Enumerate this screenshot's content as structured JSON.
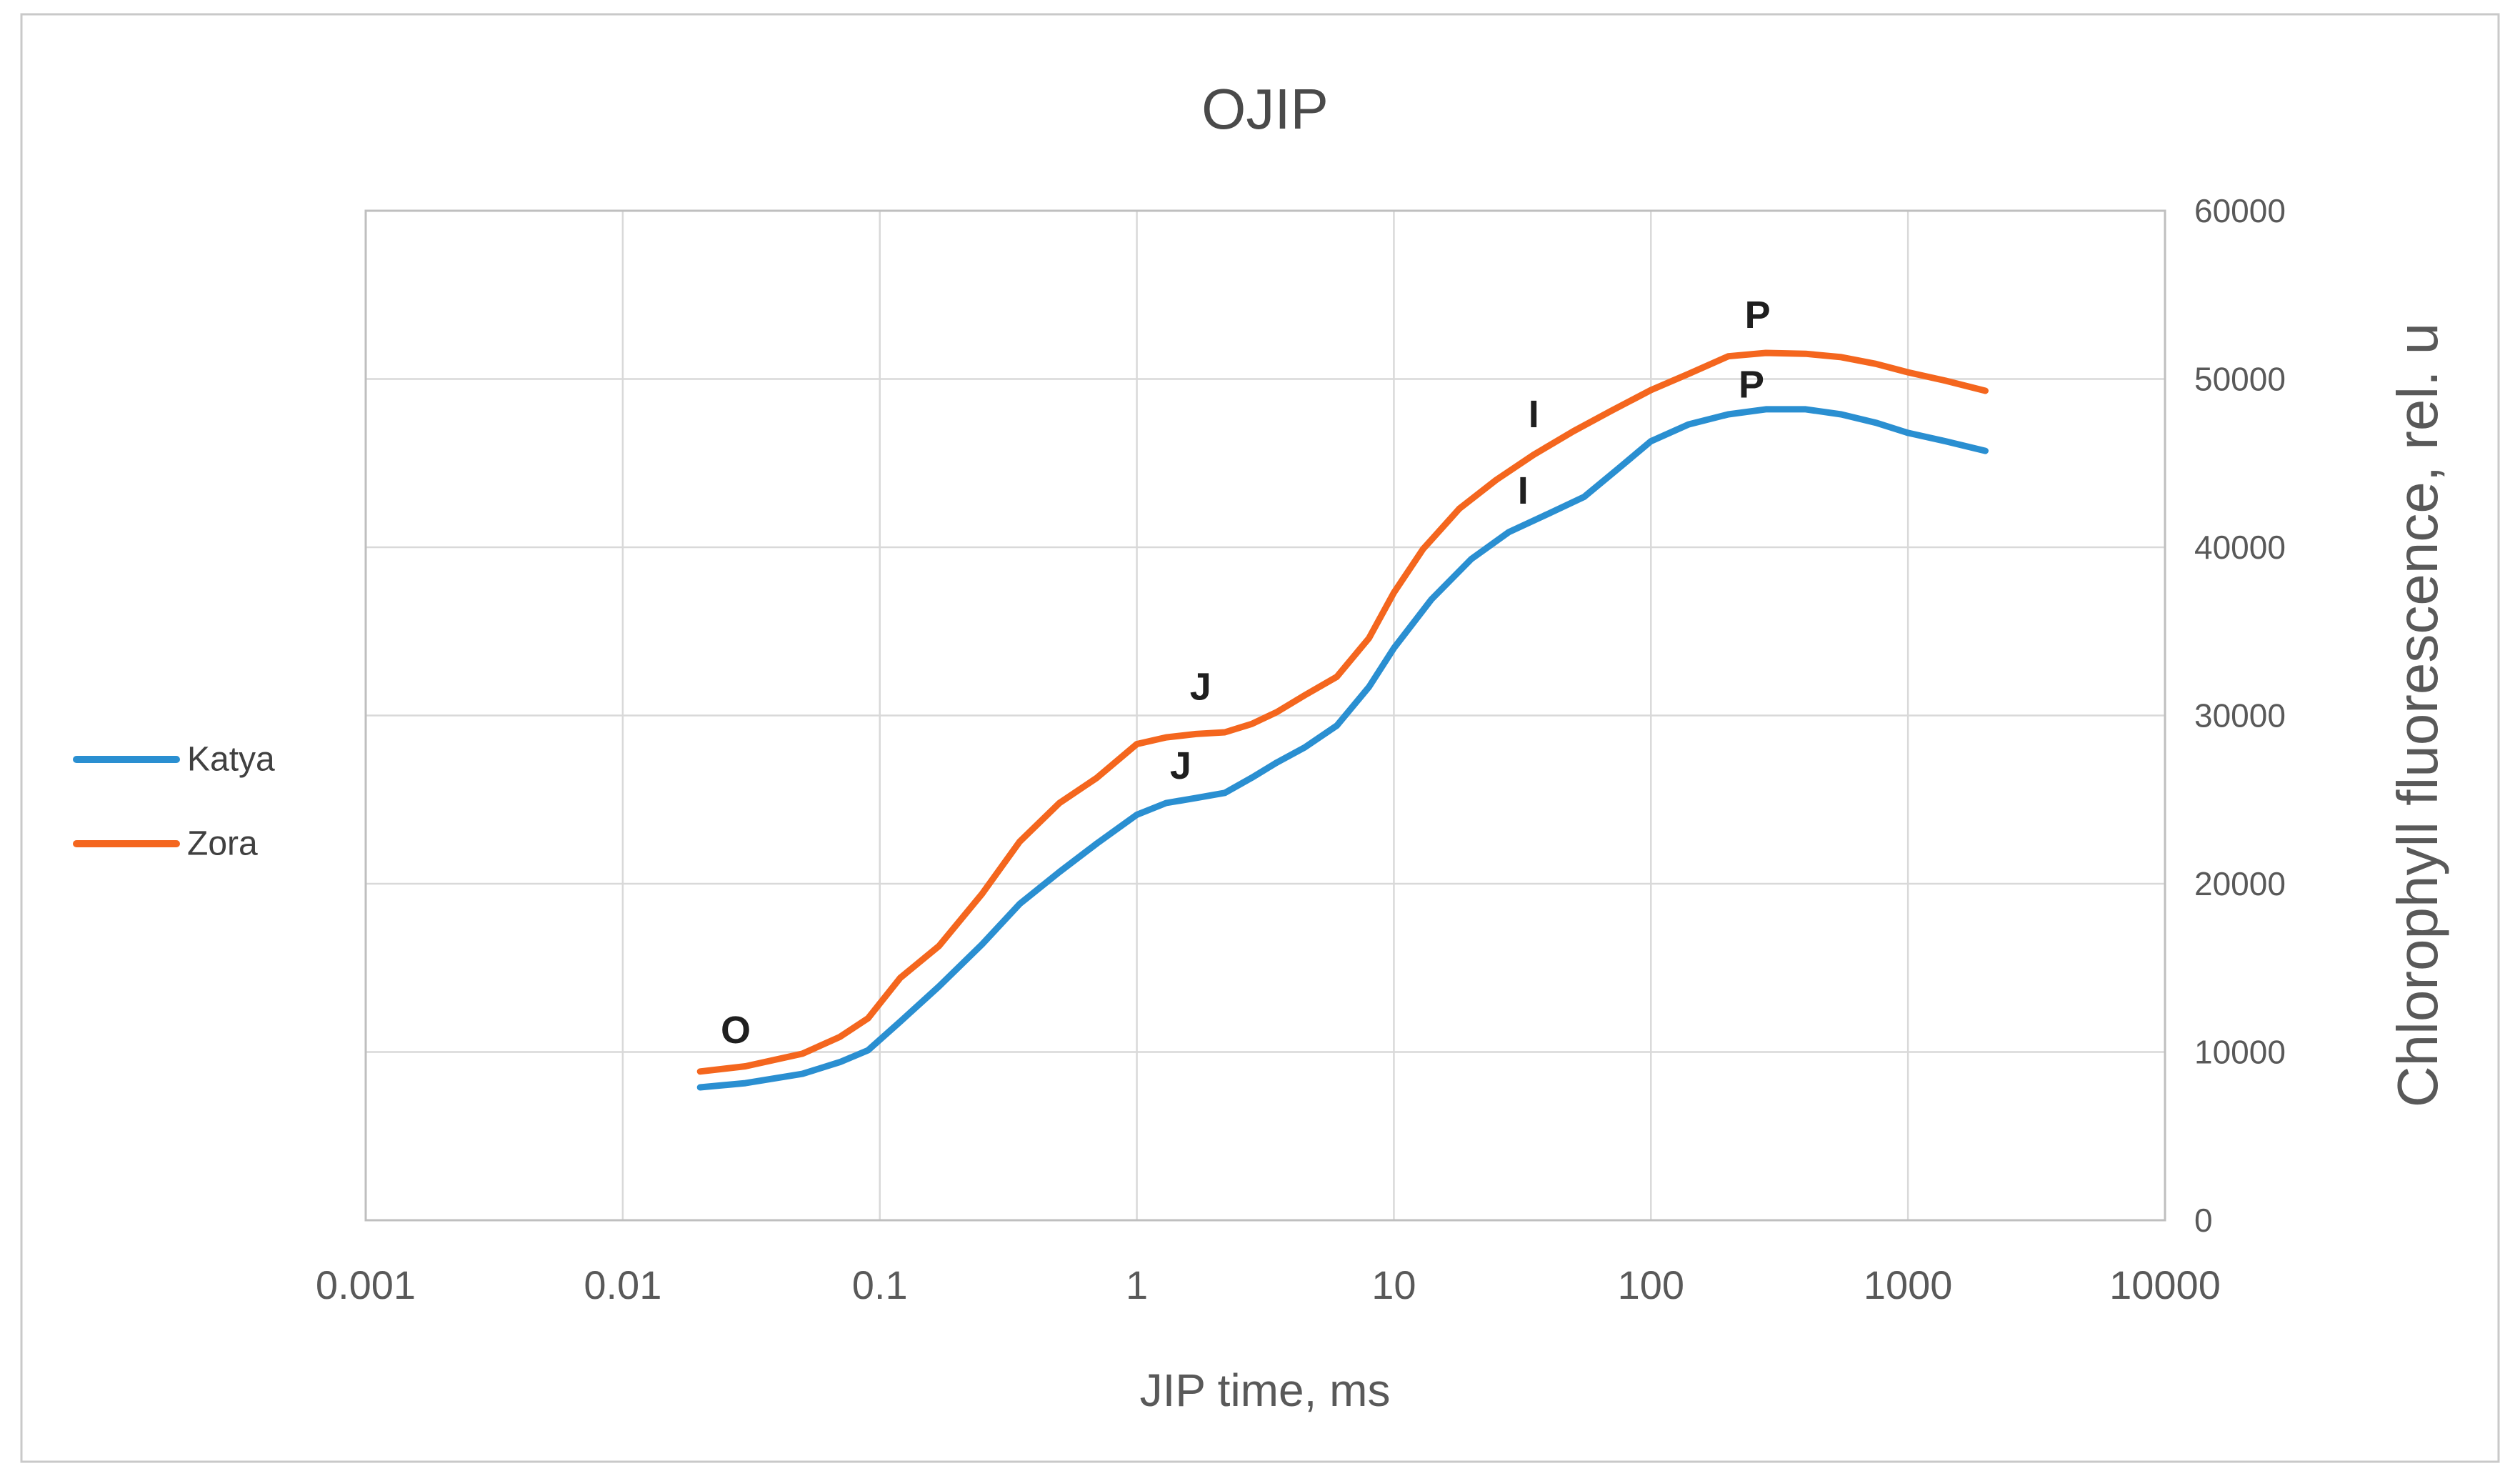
{
  "figure": {
    "background": "#FFFFFF",
    "border_color": "#C9C9C9"
  },
  "chart_data": {
    "type": "line",
    "title": "OJIP",
    "xlabel": "JIP time, ms",
    "ylabel": "Chlorophyll fluorescence, rel. u",
    "x_scale": "log",
    "xlim": [
      0.001,
      10000
    ],
    "ylim": [
      0,
      60000
    ],
    "x_ticks": [
      0.001,
      0.01,
      0.1,
      1,
      10,
      100,
      1000,
      10000
    ],
    "x_tick_labels": [
      "0.001",
      "0.01",
      "0.1",
      "1",
      "10",
      "100",
      "1000",
      "10000"
    ],
    "y_ticks": [
      0,
      10000,
      20000,
      30000,
      40000,
      50000,
      60000
    ],
    "y_tick_labels": [
      "0",
      "10000",
      "20000",
      "30000",
      "40000",
      "50000",
      "60000"
    ],
    "grid": true,
    "grid_color": "#D9D9D9",
    "plot_border_color": "#BFBFBF",
    "axis_text_color": "#595959",
    "legend_position": "left-outside",
    "series": [
      {
        "name": "Katya",
        "color": "#2A8FD1",
        "x": [
          0.02,
          0.03,
          0.05,
          0.07,
          0.09,
          0.12,
          0.17,
          0.25,
          0.35,
          0.5,
          0.7,
          1.0,
          1.3,
          1.7,
          2.2,
          2.8,
          3.5,
          4.5,
          6,
          8,
          10,
          14,
          20,
          28,
          40,
          55,
          75,
          100,
          140,
          200,
          280,
          400,
          550,
          750,
          1000,
          1400,
          2000
        ],
        "y": [
          7900,
          8150,
          8700,
          9400,
          10100,
          11800,
          13900,
          16400,
          18800,
          20700,
          22400,
          24100,
          24800,
          25100,
          25400,
          26300,
          27200,
          28100,
          29400,
          31700,
          34000,
          36900,
          39300,
          40900,
          42000,
          43000,
          44700,
          46300,
          47300,
          47900,
          48200,
          48200,
          47900,
          47400,
          46800,
          46300,
          45730
        ]
      },
      {
        "name": "Zora",
        "color": "#F4661E",
        "x": [
          0.02,
          0.03,
          0.05,
          0.07,
          0.09,
          0.12,
          0.17,
          0.25,
          0.35,
          0.5,
          0.7,
          1.0,
          1.3,
          1.7,
          2.2,
          2.8,
          3.5,
          4.5,
          6,
          8,
          10,
          13,
          18,
          25,
          35,
          50,
          70,
          100,
          140,
          200,
          280,
          400,
          550,
          750,
          1000,
          1400,
          2000
        ],
        "y": [
          8840,
          9150,
          9900,
          10900,
          12000,
          14400,
          16300,
          19400,
          22500,
          24800,
          26300,
          28300,
          28700,
          28900,
          29000,
          29500,
          30200,
          31200,
          32300,
          34600,
          37300,
          39900,
          42300,
          44000,
          45500,
          46900,
          48100,
          49340,
          50300,
          51350,
          51550,
          51500,
          51300,
          50900,
          50400,
          49900,
          49300
        ]
      }
    ],
    "annotations": [
      {
        "text": "O",
        "x": 0.0275,
        "y": 11300,
        "series": "Zora"
      },
      {
        "text": "J",
        "x": 1.77,
        "y": 31700,
        "series": "Zora"
      },
      {
        "text": "J",
        "x": 1.48,
        "y": 27000,
        "series": "Katya"
      },
      {
        "text": "I",
        "x": 35,
        "y": 47900,
        "series": "Zora"
      },
      {
        "text": "I",
        "x": 31.8,
        "y": 43350,
        "series": "Katya"
      },
      {
        "text": "P",
        "x": 260,
        "y": 53800,
        "series": "Zora"
      },
      {
        "text": "P",
        "x": 246,
        "y": 49650,
        "series": "Katya"
      }
    ]
  }
}
